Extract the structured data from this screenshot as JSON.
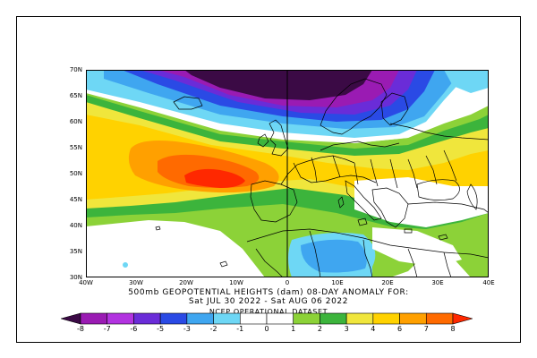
{
  "title_line1": "500mb GEOPOTENTIAL HEIGHTS (dam)   08-DAY ANOMALY FOR:",
  "title_line2": "Sat JUL 30 2022 - Sat AUG 06 2022",
  "dataset_label": "NCEP OPERATIONAL DATASET",
  "lat_labels": [
    "70N",
    "65N",
    "60N",
    "55N",
    "50N",
    "45N",
    "40N",
    "35N",
    "30N"
  ],
  "lon_labels": [
    "40W",
    "30W",
    "20W",
    "10W",
    "0",
    "10E",
    "20E",
    "30E",
    "40E"
  ],
  "colorbar": {
    "labels": [
      "-8",
      "-7",
      "-6",
      "-5",
      "-3",
      "-2",
      "-1",
      "0",
      "1",
      "2",
      "3",
      "4",
      "6",
      "7",
      "8"
    ],
    "colors": [
      "#3b0a45",
      "#9a1bb3",
      "#b233e0",
      "#6a2cd8",
      "#2a4ae5",
      "#3fa6f0",
      "#6ed7f5",
      "#ffffff",
      "#ffffff",
      "#8cd238",
      "#3cb43c",
      "#f0e63c",
      "#ffd200",
      "#ffa000",
      "#ff6a00",
      "#ff2800"
    ]
  },
  "anomaly_colors": {
    "neg8": "#3b0a45",
    "neg7": "#6a1b8c",
    "neg6": "#9a1bb3",
    "neg5": "#6a2cd8",
    "neg3": "#2a4ae5",
    "neg2": "#3fa6f0",
    "neg1": "#6ed7f5",
    "zero": "#ffffff",
    "pos1": "#8cd238",
    "pos2": "#3cb43c",
    "pos3": "#f0e63c",
    "pos4": "#ffd200",
    "pos6": "#ffa000",
    "pos7": "#ff6a00",
    "pos8": "#ff2800"
  }
}
